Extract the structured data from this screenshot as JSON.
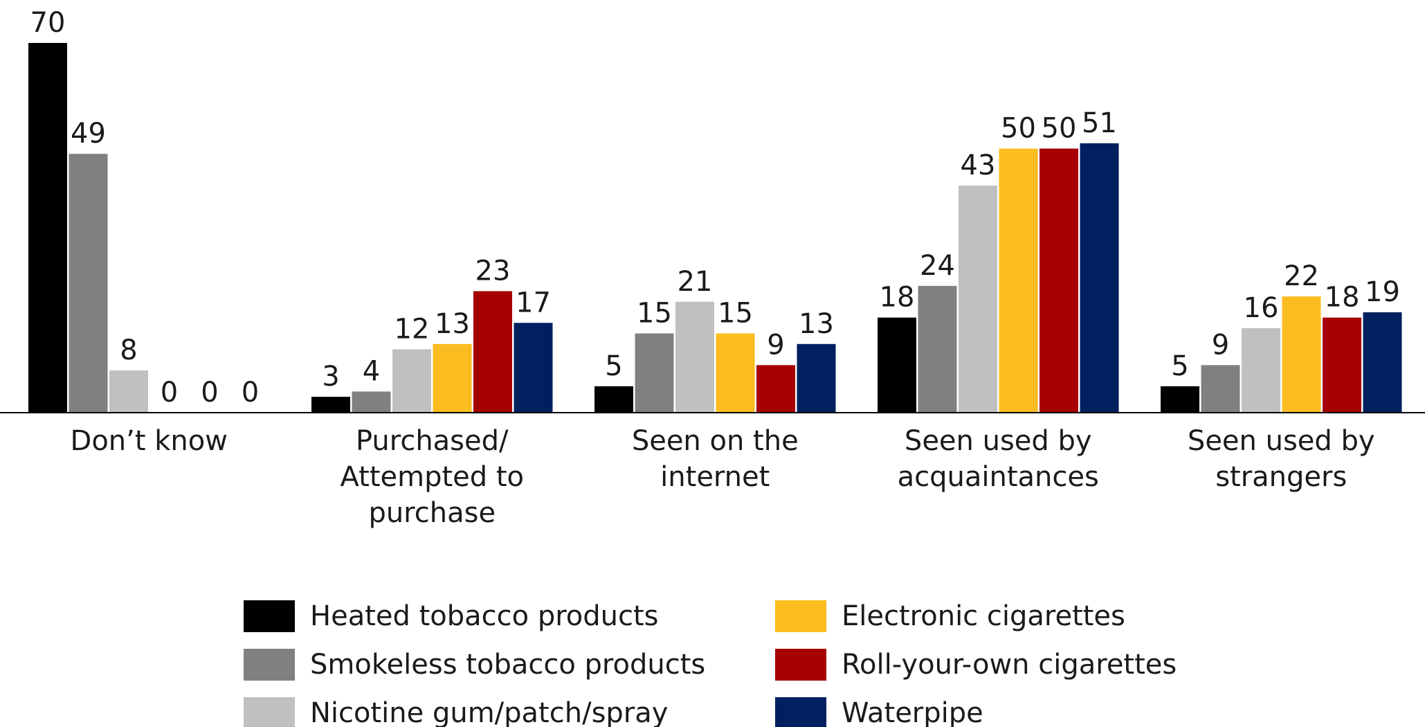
{
  "chart_data": {
    "type": "bar",
    "categories": [
      [
        "Don’t know"
      ],
      [
        "Purchased/",
        "Attempted to",
        "purchase"
      ],
      [
        "Seen on the",
        "internet"
      ],
      [
        "Seen used by",
        "acquaintances"
      ],
      [
        "Seen used by",
        "strangers"
      ]
    ],
    "series": [
      {
        "name": "Heated tobacco products",
        "color": "#000000",
        "values": [
          70,
          3,
          5,
          18,
          5
        ]
      },
      {
        "name": "Smokeless tobacco products",
        "color": "#808080",
        "values": [
          49,
          4,
          15,
          24,
          9
        ]
      },
      {
        "name": "Nicotine gum/patch/spray",
        "color": "#c0c0c0",
        "values": [
          8,
          12,
          21,
          43,
          16
        ]
      },
      {
        "name": "Electronic cigarettes",
        "color": "#fbbc1f",
        "values": [
          0,
          13,
          15,
          50,
          22
        ]
      },
      {
        "name": "Roll-your-own cigarettes",
        "color": "#a60000",
        "values": [
          0,
          23,
          9,
          50,
          18
        ]
      },
      {
        "name": "Waterpipe",
        "color": "#002060",
        "values": [
          0,
          17,
          13,
          51,
          19
        ]
      }
    ],
    "data_labels": true,
    "ylim": [
      0,
      70
    ],
    "grid": false,
    "legend_position": "bottom",
    "title": "",
    "xlabel": "",
    "ylabel": ""
  }
}
